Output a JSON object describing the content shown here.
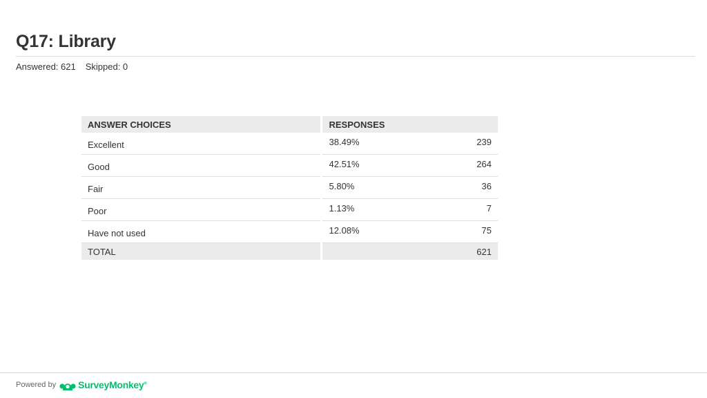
{
  "header": {
    "title": "Q17: Library",
    "answered": "Answered: 621",
    "skipped": "Skipped: 0"
  },
  "table": {
    "col_choices": "ANSWER CHOICES",
    "col_responses": "RESPONSES",
    "rows": [
      {
        "choice": "Excellent",
        "percent": "38.49%",
        "count": "239"
      },
      {
        "choice": "Good",
        "percent": "42.51%",
        "count": "264"
      },
      {
        "choice": "Fair",
        "percent": "5.80%",
        "count": "36"
      },
      {
        "choice": "Poor",
        "percent": "1.13%",
        "count": "7"
      },
      {
        "choice": "Have not used",
        "percent": "12.08%",
        "count": "75"
      }
    ],
    "total_label": "TOTAL",
    "total_count": "621"
  },
  "chart_data": {
    "type": "table",
    "title": "Q17: Library",
    "columns": [
      "ANSWER CHOICES",
      "RESPONSES"
    ],
    "categories": [
      "Excellent",
      "Good",
      "Fair",
      "Poor",
      "Have not used"
    ],
    "percentages": [
      38.49,
      42.51,
      5.8,
      1.13,
      12.08
    ],
    "counts": [
      239,
      264,
      36,
      7,
      75
    ],
    "total": 621,
    "answered": 621,
    "skipped": 0
  },
  "footer": {
    "powered_by": "Powered by",
    "brand": "SurveyMonkey",
    "trademark": "®",
    "brand_color": "#00bf6f",
    "logo_icon": "surveymonkey-logo-icon"
  }
}
